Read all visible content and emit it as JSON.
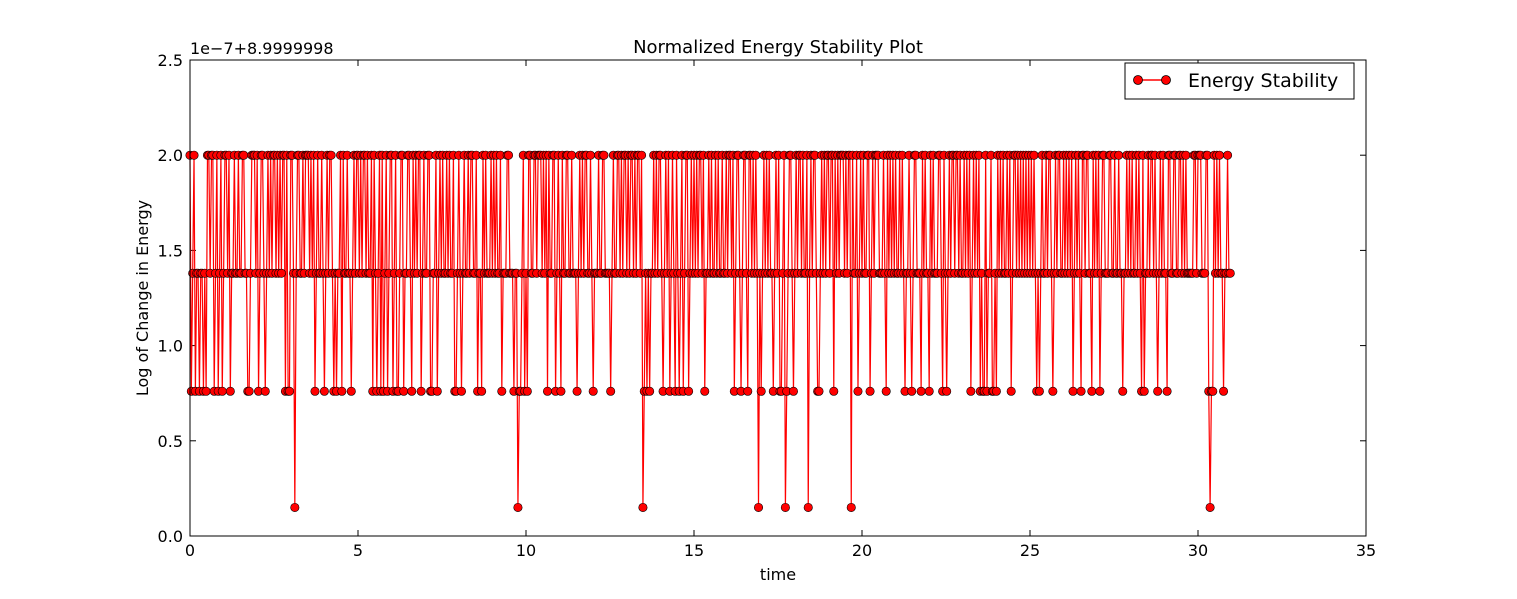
{
  "chart_data": {
    "type": "line",
    "title": "Normalized Energy Stability Plot",
    "xlabel": "time",
    "ylabel": "Log of Change in Energy",
    "offset_label": "1e−7+8.9999998",
    "xlim": [
      0,
      35
    ],
    "ylim": [
      0.0,
      2.5
    ],
    "xticks": [
      0,
      5,
      10,
      15,
      20,
      25,
      30,
      35
    ],
    "xtick_labels": [
      "0",
      "5",
      "10",
      "15",
      "20",
      "25",
      "30",
      "35"
    ],
    "yticks": [
      0.0,
      0.5,
      1.0,
      1.5,
      2.0,
      2.5
    ],
    "ytick_labels": [
      "0.0",
      "0.5",
      "1.0",
      "1.5",
      "2.0",
      "2.5"
    ],
    "grid": false,
    "legend_position": "top-right",
    "series": [
      {
        "name": "Energy Stability",
        "color": "#ff0000",
        "marker": "circle",
        "marker_edge_color": "#000000",
        "x_start": 0.0,
        "x_step": 0.04,
        "values": [
          2.0,
          0.76,
          1.38,
          2.0,
          0.76,
          1.38,
          1.38,
          0.76,
          1.38,
          1.38,
          0.76,
          1.38,
          0.76,
          2.0,
          2.0,
          1.38,
          2.0,
          2.0,
          0.76,
          1.38,
          2.0,
          0.76,
          1.38,
          2.0,
          0.76,
          1.38,
          2.0,
          2.0,
          1.38,
          2.0,
          0.76,
          1.38,
          1.38,
          2.0,
          1.38,
          1.38,
          2.0,
          1.38,
          1.38,
          2.0,
          2.0,
          1.38,
          1.38,
          0.76,
          0.76,
          1.38,
          2.0,
          2.0,
          2.0,
          1.38,
          2.0,
          0.76,
          1.38,
          2.0,
          2.0,
          1.38,
          0.76,
          1.38,
          2.0,
          1.38,
          2.0,
          1.38,
          2.0,
          2.0,
          1.38,
          2.0,
          1.38,
          2.0,
          1.38,
          2.0,
          2.0,
          0.76,
          2.0,
          0.76,
          0.76,
          2.0,
          2.0,
          1.38,
          0.15,
          1.38,
          2.0,
          2.0,
          1.38,
          1.38,
          2.0,
          1.38,
          2.0,
          2.0,
          2.0,
          1.38,
          2.0,
          1.38,
          2.0,
          0.76,
          1.38,
          2.0,
          1.38,
          1.38,
          2.0,
          1.38,
          0.76,
          1.38,
          2.0,
          1.38,
          2.0,
          2.0,
          1.38,
          0.76,
          1.38,
          0.76,
          1.38,
          1.38,
          2.0,
          0.76,
          2.0,
          1.38,
          1.38,
          2.0,
          1.38,
          1.38,
          0.76,
          1.38,
          2.0,
          1.38,
          2.0,
          2.0,
          1.38,
          2.0,
          1.38,
          2.0,
          2.0,
          1.38,
          2.0,
          1.38,
          1.38,
          2.0,
          0.76,
          2.0,
          1.38,
          0.76,
          1.38,
          2.0,
          0.76,
          2.0,
          0.76,
          1.38,
          2.0,
          0.76,
          1.38,
          2.0,
          2.0,
          0.76,
          1.38,
          2.0,
          0.76,
          0.76,
          1.38,
          2.0,
          2.0,
          0.76,
          1.38,
          1.38,
          2.0,
          2.0,
          1.38,
          0.76,
          2.0,
          1.38,
          2.0,
          1.38,
          2.0,
          2.0,
          0.76,
          1.38,
          2.0,
          1.38,
          1.38,
          2.0,
          2.0,
          0.76,
          0.76,
          1.38,
          1.38,
          2.0,
          0.76,
          1.38,
          2.0,
          1.38,
          2.0,
          1.38,
          1.38,
          2.0,
          1.38,
          2.0,
          1.38,
          1.38,
          2.0,
          0.76,
          0.76,
          1.38,
          2.0,
          1.38,
          0.76,
          1.38,
          2.0,
          1.38,
          1.38,
          2.0,
          1.38,
          2.0,
          2.0,
          1.38,
          1.38,
          2.0,
          0.76,
          1.38,
          1.38,
          0.76,
          2.0,
          1.38,
          2.0,
          1.38,
          1.38,
          1.38,
          2.0,
          1.38,
          2.0,
          1.38,
          2.0,
          1.38,
          1.38,
          2.0,
          0.76,
          1.38,
          1.38,
          1.38,
          2.0,
          2.0,
          1.38,
          1.38,
          1.38,
          0.76,
          1.38,
          1.38,
          0.15,
          0.76,
          0.76,
          1.38,
          2.0,
          0.76,
          1.38,
          0.76,
          2.0,
          2.0,
          1.38,
          1.38,
          2.0,
          2.0,
          1.38,
          2.0,
          2.0,
          2.0,
          1.38,
          2.0,
          1.38,
          2.0,
          0.76,
          2.0,
          1.38,
          1.38,
          2.0,
          2.0,
          0.76,
          1.38,
          2.0,
          1.38,
          0.76,
          2.0,
          1.38,
          1.38,
          2.0,
          2.0,
          1.38,
          1.38,
          2.0,
          1.38,
          1.38,
          1.38,
          0.76,
          1.38,
          2.0,
          1.38,
          2.0,
          1.38,
          2.0,
          2.0,
          1.38,
          1.38,
          2.0,
          1.38,
          0.76,
          1.38,
          1.38,
          1.38,
          2.0,
          1.38,
          1.38,
          2.0,
          2.0,
          1.38,
          1.38,
          1.38,
          1.38,
          0.76,
          1.38,
          2.0,
          1.38,
          1.38,
          2.0,
          2.0,
          1.38,
          2.0,
          1.38,
          2.0,
          2.0,
          1.38,
          2.0,
          1.38,
          2.0,
          2.0,
          1.38,
          2.0,
          1.38,
          2.0,
          2.0,
          1.38,
          2.0,
          0.15,
          0.76,
          1.38,
          0.76,
          1.38,
          0.76,
          1.38,
          1.38,
          2.0,
          1.38,
          2.0,
          1.38,
          2.0,
          2.0,
          1.38,
          0.76,
          1.38,
          2.0,
          1.38,
          2.0,
          0.76,
          1.38,
          2.0,
          1.38,
          0.76,
          2.0,
          1.38,
          0.76,
          1.38,
          2.0,
          0.76,
          1.38,
          2.0,
          2.0,
          0.76,
          1.38,
          2.0,
          1.38,
          2.0,
          1.38,
          2.0,
          1.38,
          2.0,
          2.0,
          1.38,
          2.0,
          0.76,
          1.38,
          1.38,
          2.0,
          1.38,
          2.0,
          1.38,
          1.38,
          2.0,
          1.38,
          2.0,
          1.38,
          1.38,
          2.0,
          1.38,
          1.38,
          2.0,
          1.38,
          2.0,
          2.0,
          1.38,
          2.0,
          0.76,
          1.38,
          2.0,
          2.0,
          1.38,
          0.76,
          1.38,
          2.0,
          2.0,
          1.38,
          0.76,
          2.0,
          2.0,
          1.38,
          2.0,
          1.38,
          2.0,
          1.38,
          0.15,
          1.38,
          0.76,
          1.38,
          2.0,
          1.38,
          2.0,
          1.38,
          2.0,
          1.38,
          1.38,
          0.76,
          1.38,
          2.0,
          1.38,
          2.0,
          0.76,
          0.76,
          1.38,
          2.0,
          0.15,
          0.76,
          1.38,
          2.0,
          2.0,
          1.38,
          0.76,
          1.38,
          2.0,
          1.38,
          2.0,
          2.0,
          1.38,
          2.0,
          1.38,
          1.38,
          2.0,
          0.15,
          1.38,
          2.0,
          1.38,
          2.0,
          2.0,
          1.38,
          0.76,
          0.76,
          1.38,
          2.0,
          1.38,
          2.0,
          1.38,
          2.0,
          2.0,
          1.38,
          2.0,
          2.0,
          0.76,
          2.0,
          1.38,
          2.0,
          1.38,
          2.0,
          2.0,
          2.0,
          1.38,
          2.0,
          1.38,
          2.0,
          2.0,
          0.15,
          2.0,
          1.38,
          1.38,
          2.0,
          0.76,
          1.38,
          2.0,
          1.38,
          2.0,
          1.38,
          1.38,
          2.0,
          2.0,
          0.76,
          1.38,
          2.0,
          1.38,
          2.0,
          2.0,
          2.0,
          1.38,
          1.38,
          1.38,
          2.0,
          1.38,
          0.76,
          2.0,
          1.38,
          2.0,
          1.38,
          2.0,
          1.38,
          2.0,
          1.38,
          1.38,
          2.0,
          1.38,
          2.0,
          1.38,
          0.76,
          1.38,
          1.38,
          2.0,
          1.38,
          0.76,
          1.38,
          2.0,
          2.0,
          1.38,
          1.38,
          1.38,
          0.76,
          2.0,
          1.38,
          2.0,
          1.38,
          1.38,
          0.76,
          2.0,
          1.38,
          2.0,
          1.38,
          1.38,
          1.38,
          2.0,
          2.0,
          1.38,
          0.76,
          2.0,
          1.38,
          0.76,
          1.38,
          2.0,
          1.38,
          2.0,
          2.0,
          1.38,
          2.0,
          2.0,
          1.38,
          2.0,
          1.38,
          1.38,
          2.0,
          1.38,
          2.0,
          1.38,
          2.0,
          0.76,
          1.38,
          2.0,
          1.38,
          2.0,
          1.38,
          2.0,
          0.76,
          1.38,
          0.76,
          0.76,
          2.0,
          0.76,
          1.38,
          1.38,
          2.0,
          0.76,
          0.76,
          1.38,
          0.76,
          2.0,
          1.38,
          2.0,
          1.38,
          2.0,
          1.38,
          1.38,
          2.0,
          1.38,
          2.0,
          0.76,
          1.38,
          2.0,
          2.0,
          1.38,
          2.0,
          1.38,
          2.0,
          1.38,
          2.0,
          1.38,
          2.0,
          1.38,
          2.0,
          1.38,
          2.0,
          1.38,
          2.0,
          1.38,
          0.76,
          1.38,
          0.76,
          1.38,
          2.0,
          1.38,
          1.38,
          2.0,
          1.38,
          2.0,
          2.0,
          1.38,
          0.76,
          1.38,
          2.0,
          1.38,
          2.0,
          2.0,
          1.38,
          1.38,
          2.0,
          1.38,
          2.0,
          1.38,
          2.0,
          1.38,
          2.0,
          0.76,
          1.38,
          2.0,
          1.38,
          2.0,
          1.38,
          0.76,
          2.0,
          2.0,
          1.38,
          2.0,
          2.0,
          1.38,
          1.38,
          0.76,
          2.0,
          1.38,
          2.0,
          1.38,
          2.0,
          0.76,
          1.38,
          2.0,
          2.0,
          1.38,
          1.38,
          1.38,
          2.0,
          2.0,
          1.38,
          1.38,
          2.0,
          1.38,
          1.38,
          2.0,
          1.38,
          1.38,
          0.76,
          1.38,
          1.38,
          2.0,
          1.38,
          2.0,
          1.38,
          2.0,
          1.38,
          1.38,
          2.0,
          1.38,
          2.0,
          1.38,
          0.76,
          2.0,
          0.76,
          1.38,
          1.38,
          2.0,
          1.38,
          2.0,
          2.0,
          1.38,
          2.0,
          1.38,
          0.76,
          1.38,
          2.0,
          1.38,
          2.0,
          1.38,
          1.38,
          0.76,
          2.0,
          2.0,
          1.38,
          1.38,
          2.0,
          2.0,
          1.38,
          1.38,
          2.0,
          2.0,
          1.38,
          2.0,
          1.38,
          2.0,
          1.38,
          1.38,
          1.38,
          1.38,
          1.38,
          2.0,
          2.0,
          1.38,
          2.0,
          2.0,
          2.0,
          1.38,
          1.38,
          1.38,
          2.0,
          2.0,
          0.76,
          0.15,
          0.76,
          0.76,
          2.0,
          1.38,
          2.0,
          1.38,
          2.0,
          1.38,
          1.38,
          0.76,
          1.38,
          1.38,
          2.0,
          1.38,
          1.38
        ]
      }
    ]
  }
}
